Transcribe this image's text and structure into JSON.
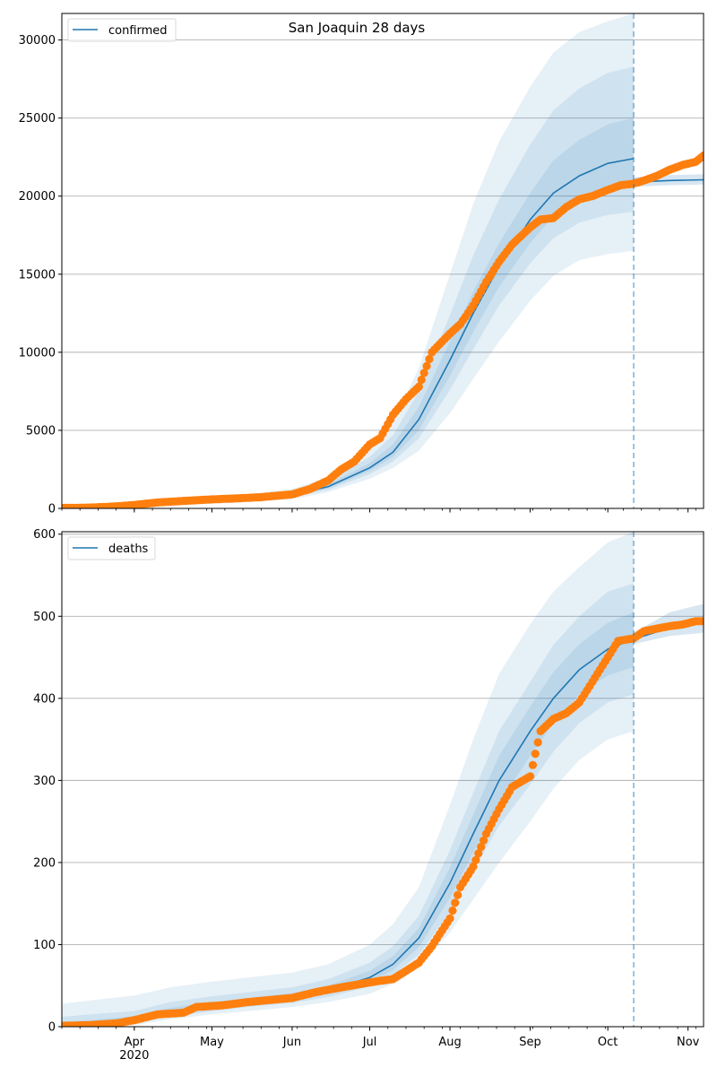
{
  "figure": {
    "title": "San Joaquin 28 days"
  },
  "colors": {
    "model_line": "#1f77b4",
    "observed": "#ff7f0e",
    "band": "#1f77b4",
    "grid": "#b0b0b0",
    "forecast_line": "#1f77b4"
  },
  "chart_data": [
    {
      "type": "line",
      "title": "San Joaquin 28 days",
      "legend": {
        "entries": [
          "confirmed"
        ],
        "placement": "top-left"
      },
      "xlabel": "",
      "ylabel": "",
      "x_range": [
        "2020-03-04",
        "2020-11-07"
      ],
      "ylim": [
        0,
        31700
      ],
      "yticks": [
        0,
        5000,
        10000,
        15000,
        20000,
        25000,
        30000
      ],
      "ytick_labels": [
        "0",
        "5000",
        "10000",
        "15000",
        "20000",
        "25000",
        "30000"
      ],
      "xticks": [
        "2020-04-01",
        "2020-05-01",
        "2020-06-01",
        "2020-07-01",
        "2020-08-01",
        "2020-09-01",
        "2020-10-01",
        "2020-11-01"
      ],
      "xtick_labels": [
        "",
        "",
        "",
        "",
        "",
        "",
        "",
        ""
      ],
      "grid": "y",
      "forecast_start": "2020-10-11",
      "model": {
        "name": "confirmed",
        "dates": [
          "2020-03-04",
          "2020-03-15",
          "2020-04-01",
          "2020-04-15",
          "2020-05-01",
          "2020-05-15",
          "2020-06-01",
          "2020-06-15",
          "2020-07-01",
          "2020-07-10",
          "2020-07-20",
          "2020-08-01",
          "2020-08-10",
          "2020-08-20",
          "2020-09-01",
          "2020-09-10",
          "2020-09-20",
          "2020-10-01",
          "2020-10-11"
        ],
        "median": [
          60,
          90,
          180,
          320,
          470,
          620,
          850,
          1400,
          2600,
          3600,
          5700,
          9500,
          12500,
          15500,
          18500,
          20200,
          21300,
          22100,
          22400
        ],
        "bands": [
          {
            "level": "outer",
            "lower": [
              0,
              20,
              80,
              180,
              300,
              420,
              600,
              1050,
              1900,
              2600,
              3700,
              6100,
              8300,
              10700,
              13300,
              14900,
              15900,
              16300,
              16500
            ],
            "upper": [
              120,
              180,
              320,
              520,
              700,
              900,
              1250,
              2000,
              3800,
              5500,
              9000,
              15000,
              19500,
              23500,
              27000,
              29200,
              30500,
              31200,
              31700
            ]
          },
          {
            "level": "middle",
            "lower": [
              20,
              45,
              120,
              230,
              370,
              500,
              720,
              1200,
              2200,
              3000,
              4500,
              7600,
              10200,
              13000,
              15700,
              17300,
              18300,
              18800,
              19000
            ],
            "upper": [
              100,
              140,
              260,
              430,
              600,
              780,
              1050,
              1750,
              3300,
              4700,
              7500,
              12400,
              16200,
              19800,
              23300,
              25500,
              26900,
              27900,
              28300
            ]
          },
          {
            "level": "inner",
            "lower": [
              40,
              70,
              150,
              270,
              420,
              560,
              780,
              1300,
              2400,
              3300,
              5000,
              8500,
              11300,
              14200,
              17000,
              18700,
              19700,
              20300,
              20600
            ],
            "upper": [
              80,
              110,
              210,
              370,
              530,
              690,
              930,
              1550,
              2900,
              4100,
              6500,
              10700,
              13900,
              17000,
              20200,
              22300,
              23600,
              24600,
              25000
            ]
          }
        ],
        "forecast_dates": [
          "2020-10-11",
          "2020-10-25",
          "2020-11-07"
        ],
        "forecast_median": [
          20900,
          21000,
          21050
        ],
        "forecast_lower": [
          20600,
          20700,
          20750
        ],
        "forecast_upper": [
          21200,
          21350,
          21400
        ]
      },
      "observed": {
        "dates": [
          "2020-03-04",
          "2020-03-14",
          "2020-03-24",
          "2020-04-01",
          "2020-04-10",
          "2020-04-20",
          "2020-05-01",
          "2020-05-10",
          "2020-05-20",
          "2020-06-01",
          "2020-06-08",
          "2020-06-15",
          "2020-06-20",
          "2020-06-25",
          "2020-07-01",
          "2020-07-05",
          "2020-07-10",
          "2020-07-15",
          "2020-07-20",
          "2020-07-25",
          "2020-08-01",
          "2020-08-05",
          "2020-08-10",
          "2020-08-15",
          "2020-08-20",
          "2020-08-25",
          "2020-09-01",
          "2020-09-05",
          "2020-09-10",
          "2020-09-15",
          "2020-09-20",
          "2020-09-25",
          "2020-10-01",
          "2020-10-06",
          "2020-10-11",
          "2020-10-15",
          "2020-10-20",
          "2020-10-25",
          "2020-10-30",
          "2020-11-04",
          "2020-11-07"
        ],
        "values": [
          30,
          50,
          120,
          220,
          380,
          480,
          580,
          640,
          720,
          900,
          1250,
          1800,
          2500,
          3000,
          4100,
          4500,
          6000,
          7000,
          7800,
          10000,
          11200,
          11800,
          13000,
          14500,
          15800,
          16900,
          18000,
          18500,
          18600,
          19300,
          19800,
          20000,
          20400,
          20700,
          20800,
          21000,
          21300,
          21700,
          22000,
          22200,
          22600
        ]
      }
    },
    {
      "type": "line",
      "title": "",
      "legend": {
        "entries": [
          "deaths"
        ],
        "placement": "top-left"
      },
      "xlabel": "",
      "ylabel": "",
      "x_range": [
        "2020-03-04",
        "2020-11-07"
      ],
      "ylim": [
        0,
        603
      ],
      "yticks": [
        0,
        100,
        200,
        300,
        400,
        500,
        600
      ],
      "ytick_labels": [
        "0",
        "100",
        "200",
        "300",
        "400",
        "500",
        "600"
      ],
      "xticks": [
        "2020-04-01",
        "2020-05-01",
        "2020-06-01",
        "2020-07-01",
        "2020-08-01",
        "2020-09-01",
        "2020-10-01",
        "2020-11-01"
      ],
      "xtick_labels": [
        "Apr\n2020",
        "May",
        "Jun",
        "Jul",
        "Aug",
        "Sep",
        "Oct",
        "Nov"
      ],
      "grid": "y",
      "forecast_start": "2020-10-11",
      "model": {
        "name": "deaths",
        "dates": [
          "2020-03-04",
          "2020-03-15",
          "2020-04-01",
          "2020-04-15",
          "2020-05-01",
          "2020-05-15",
          "2020-06-01",
          "2020-06-15",
          "2020-07-01",
          "2020-07-10",
          "2020-07-20",
          "2020-08-01",
          "2020-08-10",
          "2020-08-20",
          "2020-09-01",
          "2020-09-10",
          "2020-09-20",
          "2020-10-01",
          "2020-10-11"
        ],
        "median": [
          2,
          4,
          9,
          18,
          25,
          30,
          36,
          44,
          60,
          76,
          108,
          175,
          235,
          300,
          360,
          400,
          435,
          460,
          472
        ],
        "bands": [
          {
            "level": "outer",
            "lower": [
              0,
              0,
              2,
              9,
              15,
              19,
              24,
              30,
              40,
              52,
              72,
              115,
              155,
              200,
              250,
              290,
              325,
              350,
              360
            ],
            "upper": [
              28,
              32,
              38,
              48,
              55,
              60,
              66,
              76,
              100,
              125,
              170,
              270,
              350,
              430,
              490,
              530,
              560,
              590,
              603
            ]
          },
          {
            "level": "middle",
            "lower": [
              0,
              1,
              5,
              12,
              19,
              24,
              29,
              36,
              49,
              63,
              88,
              140,
              190,
              245,
              295,
              335,
              370,
              395,
              405
            ],
            "upper": [
              12,
              15,
              19,
              30,
              37,
              42,
              48,
              58,
              78,
              98,
              135,
              215,
              285,
              360,
              420,
              465,
              500,
              530,
              540
            ]
          },
          {
            "level": "inner",
            "lower": [
              1,
              2,
              7,
              15,
              22,
              27,
              33,
              40,
              54,
              69,
              97,
              157,
              212,
              272,
              330,
              370,
              405,
              428,
              438
            ],
            "upper": [
              6,
              8,
              13,
              23,
              30,
              35,
              41,
              50,
              68,
              86,
              120,
              194,
              258,
              330,
              390,
              432,
              466,
              492,
              505
            ]
          }
        ],
        "forecast_dates": [
          "2020-10-11",
          "2020-10-25",
          "2020-11-07"
        ],
        "forecast_median": [
          472,
          486,
          492
        ],
        "forecast_lower": [
          466,
          476,
          480
        ],
        "forecast_upper": [
          480,
          505,
          515
        ]
      },
      "observed": {
        "dates": [
          "2020-03-04",
          "2020-03-15",
          "2020-03-25",
          "2020-04-01",
          "2020-04-10",
          "2020-04-20",
          "2020-04-25",
          "2020-05-05",
          "2020-05-15",
          "2020-05-25",
          "2020-06-01",
          "2020-06-10",
          "2020-06-20",
          "2020-07-01",
          "2020-07-10",
          "2020-07-15",
          "2020-07-20",
          "2020-07-25",
          "2020-08-01",
          "2020-08-05",
          "2020-08-10",
          "2020-08-15",
          "2020-08-20",
          "2020-08-25",
          "2020-09-01",
          "2020-09-05",
          "2020-09-10",
          "2020-09-15",
          "2020-09-20",
          "2020-09-25",
          "2020-10-01",
          "2020-10-05",
          "2020-10-11",
          "2020-10-15",
          "2020-10-20",
          "2020-10-25",
          "2020-10-30",
          "2020-11-04",
          "2020-11-07"
        ],
        "values": [
          1,
          2,
          4,
          8,
          15,
          17,
          24,
          26,
          30,
          33,
          35,
          42,
          48,
          54,
          58,
          68,
          78,
          98,
          132,
          170,
          195,
          235,
          265,
          292,
          305,
          360,
          375,
          382,
          395,
          420,
          450,
          470,
          473,
          482,
          485,
          488,
          490,
          494,
          494
        ]
      }
    }
  ]
}
